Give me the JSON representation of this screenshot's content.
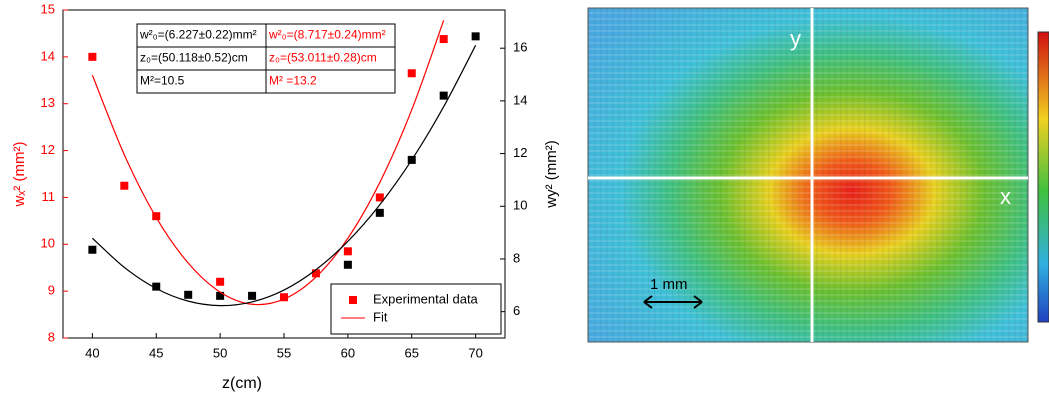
{
  "chart_data": {
    "type": "scatter",
    "x_label": "z(cm)",
    "y_label": "wₓ² (mm²)",
    "y2_label": "wy² (mm²)",
    "xlim": [
      37.7,
      72.3
    ],
    "xticks": [
      40,
      45,
      50,
      55,
      60,
      65,
      70
    ],
    "ylim": [
      8,
      15
    ],
    "yticks": [
      8,
      9,
      10,
      11,
      12,
      13,
      14,
      15
    ],
    "y2lim": [
      5.0,
      17.45
    ],
    "y2ticks": [
      6,
      8,
      10,
      12,
      14,
      16
    ],
    "legend": "bottom-right",
    "series": [
      {
        "name": "Experimental data",
        "color": "#ff0000",
        "mode": "markers",
        "axis": "y",
        "x": [
          40,
          42.5,
          45,
          50,
          55,
          57.5,
          60,
          62.5,
          65,
          67.5
        ],
        "values": [
          14.0,
          11.25,
          10.6,
          9.2,
          8.87,
          9.38,
          9.85,
          11.0,
          13.65,
          14.38
        ]
      },
      {
        "color": "#000000",
        "mode": "markers",
        "axis": "y2",
        "x": [
          40,
          45,
          47.5,
          50,
          52.5,
          60,
          62.5,
          65,
          67.5,
          70
        ],
        "values": [
          8.35,
          6.95,
          6.64,
          6.6,
          6.6,
          7.78,
          9.75,
          11.76,
          14.2,
          16.45
        ]
      },
      {
        "name": "Fit",
        "color": "#ff0000",
        "mode": "line",
        "axis": "y",
        "x": [
          40,
          42.5,
          45,
          47.5,
          50,
          52.5,
          55,
          57.5,
          60,
          62.5,
          65,
          67.5
        ],
        "values": [
          13.61,
          11.91,
          10.57,
          9.6,
          8.98,
          8.72,
          8.83,
          9.3,
          10.13,
          11.32,
          12.87,
          14.78
        ]
      },
      {
        "color": "#000000",
        "mode": "line",
        "axis": "y2",
        "x": [
          40,
          42.5,
          45,
          47.5,
          50,
          52.5,
          55,
          57.5,
          60,
          62.5,
          65,
          67.5,
          70
        ],
        "values": [
          8.79,
          7.68,
          6.88,
          6.4,
          6.23,
          6.37,
          6.82,
          7.59,
          8.67,
          10.06,
          11.76,
          13.78,
          16.11
        ]
      }
    ],
    "table": [
      [
        {
          "text": "w²₀=(6.227±0.22)mm²",
          "color": "#000000"
        },
        {
          "text": "w²₀=(8.717±0.24)mm²",
          "color": "#ff0000"
        }
      ],
      [
        {
          "text": "z₀=(50.118±0.52)cm",
          "color": "#000000"
        },
        {
          "text": "z₀=(53.011±0.28)cm",
          "color": "#ff0000"
        }
      ],
      [
        {
          "text": "M²=10.5",
          "color": "#000000"
        },
        {
          "text": "M² =13.2",
          "color": "#ff0000"
        }
      ]
    ]
  },
  "image": {
    "y_label": "y",
    "x_label": "x",
    "scale_label": "1 mm"
  }
}
